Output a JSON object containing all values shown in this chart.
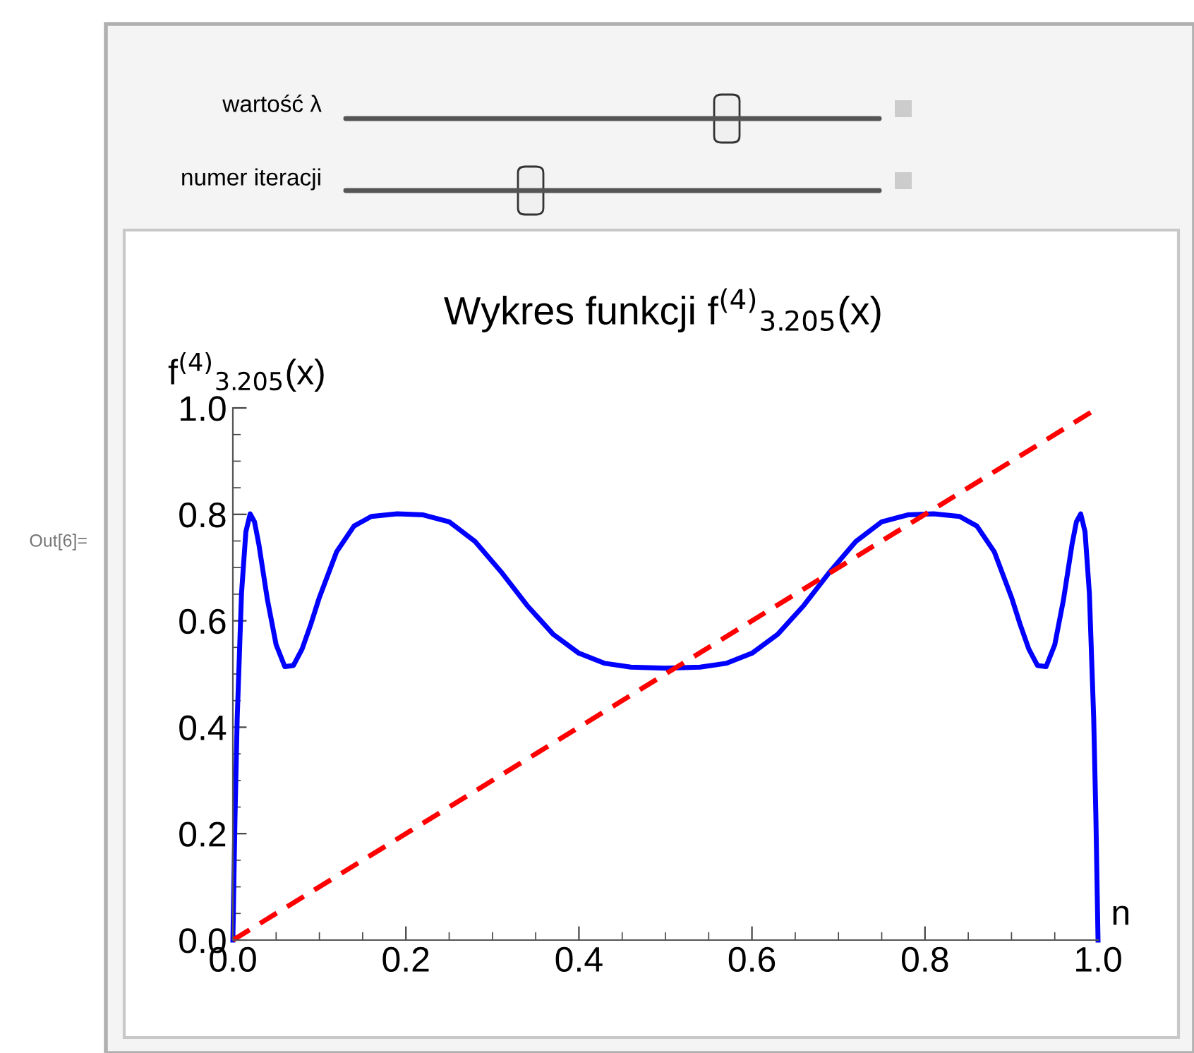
{
  "chart_data": {
    "type": "line",
    "title": "Wykres funkcji f$^{(4)}$$_{3.205}$(x)",
    "xlabel": "n",
    "ylabel": "f$^{(4)}$$_{3.205}$(x)",
    "xlim": [
      0,
      1
    ],
    "ylim": [
      0,
      1
    ],
    "xticks": [
      {
        "value": 0,
        "label": "0.0"
      },
      0.2,
      0.4,
      0.6,
      0.8,
      {
        "value": 1,
        "label": "1.0"
      }
    ],
    "yticks": [
      {
        "value": 0,
        "label": "0.0"
      },
      0.2,
      0.4,
      0.6,
      0.8,
      {
        "value": 1,
        "label": "1.0"
      }
    ],
    "series": [
      {
        "color": "#0000ff",
        "line_style": "solid",
        "x": [
          0,
          0.0025,
          0.005,
          0.01,
          0.015,
          0.02,
          0.025,
          0.03,
          0.04,
          0.05,
          0.06,
          0.07,
          0.08,
          0.09,
          0.1,
          0.12,
          0.14,
          0.16,
          0.19,
          0.22,
          0.25,
          0.28,
          0.31,
          0.34,
          0.37,
          0.4,
          0.43,
          0.46,
          0.5,
          0.54,
          0.57,
          0.6,
          0.63,
          0.66,
          0.69,
          0.72,
          0.75,
          0.78,
          0.81,
          0.84,
          0.86,
          0.88,
          0.9,
          0.91,
          0.92,
          0.93,
          0.94,
          0.95,
          0.96,
          0.97,
          0.975,
          0.98,
          0.985,
          0.99,
          0.995,
          0.9975,
          1
        ],
        "values": [
          0,
          0.234,
          0.416,
          0.652,
          0.767,
          0.801,
          0.786,
          0.744,
          0.639,
          0.555,
          0.514,
          0.516,
          0.547,
          0.593,
          0.644,
          0.73,
          0.778,
          0.796,
          0.801,
          0.799,
          0.786,
          0.749,
          0.692,
          0.629,
          0.575,
          0.539,
          0.52,
          0.513,
          0.511,
          0.513,
          0.52,
          0.539,
          0.575,
          0.629,
          0.692,
          0.749,
          0.786,
          0.799,
          0.801,
          0.796,
          0.778,
          0.73,
          0.644,
          0.593,
          0.547,
          0.516,
          0.514,
          0.555,
          0.639,
          0.744,
          0.786,
          0.801,
          0.767,
          0.652,
          0.416,
          0.234,
          0
        ]
      },
      {
        "color": "#ff0000",
        "line_style": "dashed",
        "x": [
          0,
          1
        ],
        "values": [
          0,
          1
        ]
      }
    ],
    "annotations": [
      "wartość λ",
      "numer iteracji",
      "Out[6]="
    ]
  }
}
